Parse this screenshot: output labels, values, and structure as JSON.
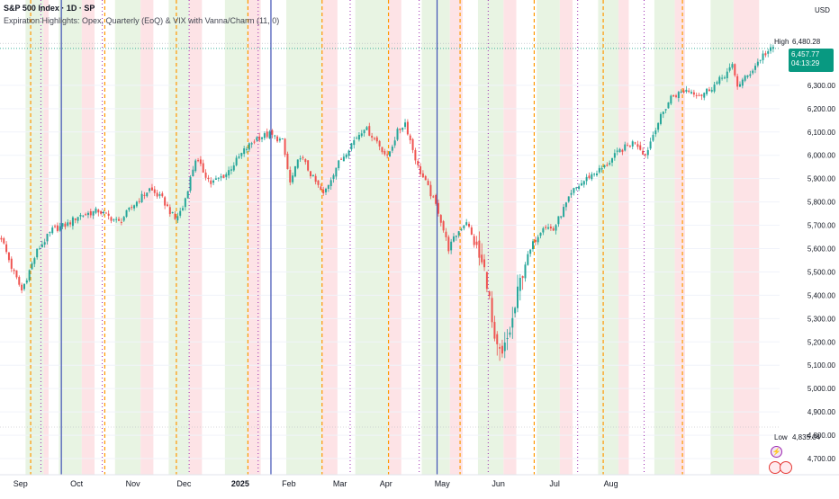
{
  "header": {
    "symbol_title": "S&P 500 Index · 1D · SP",
    "indicator_title": "Expiration Highlights: Opex, Quarterly (EoQ) & VIX with Vanna/Charm (11, 0)"
  },
  "price_scale": {
    "currency": "USD",
    "high_label": "High",
    "high_value": "6,480.28",
    "last_value": "6,457.77",
    "countdown": "04:13:29",
    "low_label": "Low",
    "low_value": "4,835.04"
  },
  "colors": {
    "up": "#26a69a",
    "down": "#ef5350",
    "green_zone": "#e8f4e3",
    "red_zone": "#fde3e6",
    "opex_line": "#ff9800",
    "quarterly_line": "#3f51b5",
    "vix_line": "#9c27b0",
    "last_price_tag": "#089981"
  },
  "chart_data": {
    "type": "candlestick",
    "x_axis_labels": [
      "Sep",
      "Oct",
      "Nov",
      "Dec",
      "2025",
      "Feb",
      "Mar",
      "Apr",
      "May",
      "Jun",
      "Jul",
      "Aug"
    ],
    "y_axis": {
      "range": [
        4650,
        6550
      ],
      "tick_labels": [
        "6,300.00",
        "6,200.00",
        "6,100.00",
        "6,000.00",
        "5,900.00",
        "5,800.00",
        "5,700.00",
        "5,600.00",
        "5,500.00",
        "5,400.00",
        "5,300.00",
        "5,200.00",
        "5,100.00",
        "5,000.00",
        "4,900.00",
        "4,800.00",
        "4,700.00"
      ]
    },
    "close_path": [
      [
        0,
        5648
      ],
      [
        4,
        5520
      ],
      [
        8,
        5420
      ],
      [
        14,
        5590
      ],
      [
        20,
        5680
      ],
      [
        26,
        5705
      ],
      [
        30,
        5740
      ],
      [
        38,
        5762
      ],
      [
        46,
        5712
      ],
      [
        52,
        5790
      ],
      [
        58,
        5855
      ],
      [
        63,
        5812
      ],
      [
        68,
        5725
      ],
      [
        71,
        5775
      ],
      [
        76,
        5985
      ],
      [
        82,
        5880
      ],
      [
        88,
        5920
      ],
      [
        95,
        6020
      ],
      [
        100,
        6075
      ],
      [
        105,
        6090
      ],
      [
        110,
        6060
      ],
      [
        113,
        5880
      ],
      [
        117,
        6000
      ],
      [
        121,
        5920
      ],
      [
        126,
        5830
      ],
      [
        131,
        5950
      ],
      [
        137,
        6050
      ],
      [
        142,
        6120
      ],
      [
        147,
        6060
      ],
      [
        151,
        5990
      ],
      [
        155,
        6100
      ],
      [
        158,
        6140
      ],
      [
        163,
        5950
      ],
      [
        167,
        5860
      ],
      [
        171,
        5760
      ],
      [
        175,
        5600
      ],
      [
        178,
        5660
      ],
      [
        182,
        5720
      ],
      [
        186,
        5590
      ],
      [
        190,
        5470
      ],
      [
        193,
        5175
      ],
      [
        196,
        5130
      ],
      [
        200,
        5290
      ],
      [
        204,
        5510
      ],
      [
        208,
        5620
      ],
      [
        212,
        5700
      ],
      [
        216,
        5680
      ],
      [
        219,
        5750
      ],
      [
        224,
        5850
      ],
      [
        230,
        5910
      ],
      [
        236,
        5950
      ],
      [
        242,
        6020
      ],
      [
        248,
        6060
      ],
      [
        252,
        6000
      ],
      [
        256,
        6120
      ],
      [
        262,
        6250
      ],
      [
        268,
        6280
      ],
      [
        274,
        6260
      ],
      [
        280,
        6310
      ],
      [
        286,
        6380
      ],
      [
        288,
        6300
      ],
      [
        292,
        6340
      ],
      [
        298,
        6430
      ],
      [
        302,
        6458
      ]
    ],
    "highlight_zones": {
      "green": [
        [
          10,
          17
        ],
        [
          23,
          32
        ],
        [
          45,
          55
        ],
        [
          66,
          74
        ],
        [
          88,
          97
        ],
        [
          112,
          126
        ],
        [
          139,
          152
        ],
        [
          165,
          176
        ],
        [
          187,
          197
        ],
        [
          210,
          219
        ],
        [
          234,
          242
        ],
        [
          256,
          264
        ],
        [
          278,
          287
        ]
      ],
      "red": [
        [
          17,
          19
        ],
        [
          32,
          37
        ],
        [
          55,
          60
        ],
        [
          74,
          79
        ],
        [
          97,
          102
        ],
        [
          126,
          132
        ],
        [
          152,
          157
        ],
        [
          176,
          181
        ],
        [
          197,
          202
        ],
        [
          219,
          224
        ],
        [
          242,
          246
        ],
        [
          264,
          268
        ],
        [
          287,
          297
        ]
      ]
    },
    "opex_lines": [
      12,
      41,
      69,
      97,
      126,
      152,
      180,
      209,
      236,
      267
    ],
    "quarterly_lines": [
      24,
      106,
      171
    ],
    "vix_lines": [
      16,
      40,
      74,
      101,
      137,
      164,
      191,
      226,
      252
    ]
  }
}
